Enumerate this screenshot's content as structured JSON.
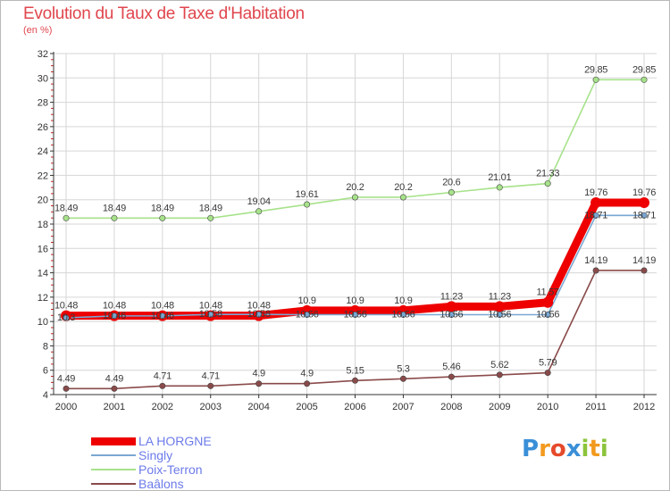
{
  "title": "Evolution du Taux de Taxe d'Habitation",
  "subtitle": "(en %)",
  "logo": {
    "text": "Proxiti",
    "letters": [
      {
        "ch": "P",
        "color": "#3a8fd8"
      },
      {
        "ch": "r",
        "color": "#f29a1f"
      },
      {
        "ch": "o",
        "color": "#e54a2a"
      },
      {
        "ch": "x",
        "color": "#3a8fd8"
      },
      {
        "ch": "i",
        "color": "#8cc43c"
      },
      {
        "ch": "t",
        "color": "#f29a1f"
      },
      {
        "ch": "i",
        "color": "#8cc43c"
      }
    ]
  },
  "chart_data": {
    "type": "line",
    "title": "Evolution du Taux de Taxe d'Habitation",
    "ylabel": "(en %)",
    "x": [
      "2000",
      "2001",
      "2002",
      "2003",
      "2004",
      "2005",
      "2006",
      "2007",
      "2008",
      "2009",
      "2010",
      "2011",
      "2012"
    ],
    "ylim": [
      4,
      32
    ],
    "yticks": [
      4,
      6,
      8,
      10,
      12,
      14,
      16,
      18,
      20,
      22,
      24,
      26,
      28,
      30,
      32
    ],
    "grid": true,
    "legend": "bottom-left",
    "series": [
      {
        "name": "LA HORGNE",
        "color": "#ee0000",
        "style": "thick",
        "values": [
          10.48,
          10.48,
          10.48,
          10.48,
          10.48,
          10.9,
          10.9,
          10.9,
          11.23,
          11.23,
          11.57,
          19.76,
          19.76
        ],
        "labels": [
          "10.48",
          "10.48",
          "10.48",
          "10.48",
          "10.48",
          "10.9",
          "10.9",
          "10.9",
          "11.23",
          "11.23",
          "11.57",
          "19.76",
          "19.76"
        ]
      },
      {
        "name": "Singly",
        "color": "#7aa7d2",
        "style": "thin",
        "values": [
          10.3,
          10.46,
          10.46,
          10.58,
          10.58,
          10.56,
          10.56,
          10.56,
          10.56,
          10.56,
          10.56,
          18.71,
          18.71
        ],
        "labels": [
          "10.3",
          "10.46",
          "10.46",
          "10.58",
          "10.58",
          "10.56",
          "10.56",
          "10.56",
          "10.56",
          "10.56",
          "10.56",
          "18.71",
          "18.71"
        ]
      },
      {
        "name": "Poix-Terron",
        "color": "#a7e28a",
        "style": "thin",
        "values": [
          18.49,
          18.49,
          18.49,
          18.49,
          19.04,
          19.61,
          20.2,
          20.2,
          20.6,
          21.01,
          21.33,
          29.85,
          29.85
        ],
        "labels": [
          "18.49",
          "18.49",
          "18.49",
          "18.49",
          "19.04",
          "19.61",
          "20.2",
          "20.2",
          "20.6",
          "21.01",
          "21.33",
          "29.85",
          "29.85"
        ]
      },
      {
        "name": "Baâlons",
        "color": "#8a4a4a",
        "style": "thin",
        "values": [
          4.49,
          4.49,
          4.71,
          4.71,
          4.9,
          4.9,
          5.15,
          5.3,
          5.46,
          5.62,
          5.79,
          14.19,
          14.19
        ],
        "labels": [
          "4.49",
          "4.49",
          "4.71",
          "4.71",
          "4.9",
          "4.9",
          "5.15",
          "5.3",
          "5.46",
          "5.62",
          "5.79",
          "14.19",
          "14.19"
        ]
      }
    ]
  },
  "colors": {
    "title": "#e0464e",
    "grid": "#d6d6d6",
    "axis": "#333333",
    "minor_tick": "#cc2222",
    "legend_label": "#6c7bea"
  }
}
